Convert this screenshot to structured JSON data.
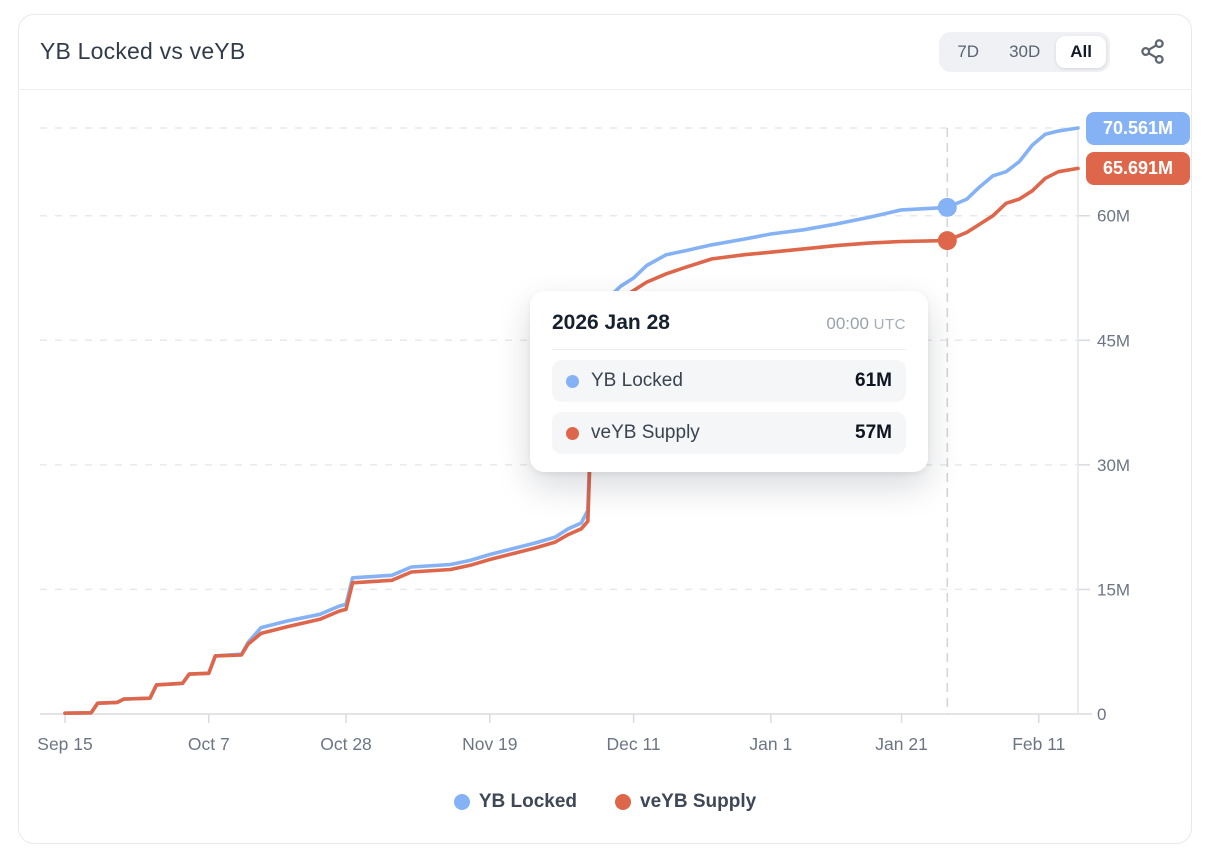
{
  "header": {
    "title": "YB Locked vs veYB",
    "range_buttons": [
      {
        "label": "7D",
        "active": false
      },
      {
        "label": "30D",
        "active": false
      },
      {
        "label": "All",
        "active": true
      }
    ],
    "share_icon": "share-icon"
  },
  "tooltip": {
    "date": "2026 Jan 28",
    "time": "00:00",
    "timezone": "UTC",
    "rows": [
      {
        "label": "YB Locked",
        "value": "61M",
        "color": "#85b2f4"
      },
      {
        "label": "veYB Supply",
        "value": "57M",
        "color": "#de674b"
      }
    ]
  },
  "end_labels": [
    {
      "text": "70.561M",
      "value": 70.561,
      "color": "#85b2f4"
    },
    {
      "text": "65.691M",
      "value": 65.691,
      "color": "#de674b"
    }
  ],
  "legend": [
    {
      "label": "YB Locked",
      "color": "#85b2f4"
    },
    {
      "label": "veYB Supply",
      "color": "#de674b"
    }
  ],
  "colors": {
    "yb_locked": "#85b2f4",
    "veyb_supply": "#de674b",
    "grid": "#e7e9ec",
    "axis_line": "#d8dbe0",
    "crosshair": "#d2d5db",
    "axis_text": "#6c7584"
  },
  "chart_data": {
    "type": "line",
    "title": "YB Locked vs veYB",
    "units": "millions of tokens",
    "x_domain": [
      "2025-09-15",
      "2026-02-17"
    ],
    "ylim": [
      0,
      70.561
    ],
    "grid": "dashed-horizontal",
    "legend_position": "bottom",
    "x": [
      "2025-09-15",
      "2025-09-19",
      "2025-09-20",
      "2025-09-23",
      "2025-09-24",
      "2025-09-28",
      "2025-09-29",
      "2025-10-03",
      "2025-10-04",
      "2025-10-07",
      "2025-10-08",
      "2025-10-12",
      "2025-10-13",
      "2025-10-15",
      "2025-10-19",
      "2025-10-24",
      "2025-10-27",
      "2025-10-28",
      "2025-10-29",
      "2025-11-04",
      "2025-11-07",
      "2025-11-13",
      "2025-11-16",
      "2025-11-19",
      "2025-11-23",
      "2025-11-26",
      "2025-11-29",
      "2025-12-01",
      "2025-12-03",
      "2025-12-04",
      "2025-12-05",
      "2025-12-07",
      "2025-12-09",
      "2025-12-11",
      "2025-12-13",
      "2025-12-16",
      "2025-12-19",
      "2025-12-23",
      "2025-12-28",
      "2026-01-01",
      "2026-01-06",
      "2026-01-11",
      "2026-01-16",
      "2026-01-21",
      "2026-01-28",
      "2026-01-31",
      "2026-02-02",
      "2026-02-04",
      "2026-02-06",
      "2026-02-08",
      "2026-02-10",
      "2026-02-12",
      "2026-02-14",
      "2026-02-17"
    ],
    "series": [
      {
        "name": "YB Locked",
        "color": "#85b2f4",
        "values": [
          0.1,
          0.15,
          1.3,
          1.4,
          1.8,
          1.9,
          3.5,
          3.7,
          4.8,
          4.9,
          7.0,
          7.2,
          8.6,
          10.4,
          11.2,
          12.0,
          13.0,
          13.2,
          16.4,
          16.7,
          17.7,
          18.0,
          18.5,
          19.2,
          20.0,
          20.6,
          21.3,
          22.3,
          23.0,
          24.5,
          47.0,
          50.0,
          51.5,
          52.5,
          54.0,
          55.3,
          55.8,
          56.5,
          57.2,
          57.8,
          58.3,
          59.0,
          59.8,
          60.7,
          61.0,
          62.0,
          63.5,
          64.8,
          65.3,
          66.5,
          68.5,
          69.8,
          70.2,
          70.561
        ]
      },
      {
        "name": "veYB Supply",
        "color": "#de674b",
        "values": [
          0.1,
          0.15,
          1.3,
          1.4,
          1.8,
          1.9,
          3.5,
          3.7,
          4.8,
          4.9,
          7.0,
          7.1,
          8.4,
          9.7,
          10.5,
          11.4,
          12.4,
          12.6,
          15.8,
          16.1,
          17.1,
          17.4,
          17.9,
          18.6,
          19.4,
          20.0,
          20.7,
          21.6,
          22.3,
          23.2,
          45.5,
          48.5,
          50.0,
          51.0,
          52.0,
          53.0,
          53.8,
          54.8,
          55.3,
          55.6,
          56.0,
          56.4,
          56.7,
          56.9,
          57.0,
          58.0,
          59.0,
          60.0,
          61.5,
          62.0,
          63.0,
          64.5,
          65.3,
          65.691
        ]
      }
    ],
    "x_ticks": [
      {
        "date": "2025-09-15",
        "label": "Sep 15"
      },
      {
        "date": "2025-10-07",
        "label": "Oct 7"
      },
      {
        "date": "2025-10-28",
        "label": "Oct 28"
      },
      {
        "date": "2025-11-19",
        "label": "Nov 19"
      },
      {
        "date": "2025-12-11",
        "label": "Dec 11"
      },
      {
        "date": "2026-01-01",
        "label": "Jan 1"
      },
      {
        "date": "2026-01-21",
        "label": "Jan 21"
      },
      {
        "date": "2026-02-11",
        "label": "Feb 11"
      }
    ],
    "y_ticks": [
      {
        "value": 0,
        "label": "0"
      },
      {
        "value": 15,
        "label": "15M"
      },
      {
        "value": 30,
        "label": "30M"
      },
      {
        "value": 45,
        "label": "45M"
      },
      {
        "value": 60,
        "label": "60M"
      }
    ],
    "crosshair": {
      "date": "2026-01-28",
      "label": "2026 Jan 28 00:00 UTC",
      "values": [
        61,
        57
      ]
    }
  }
}
